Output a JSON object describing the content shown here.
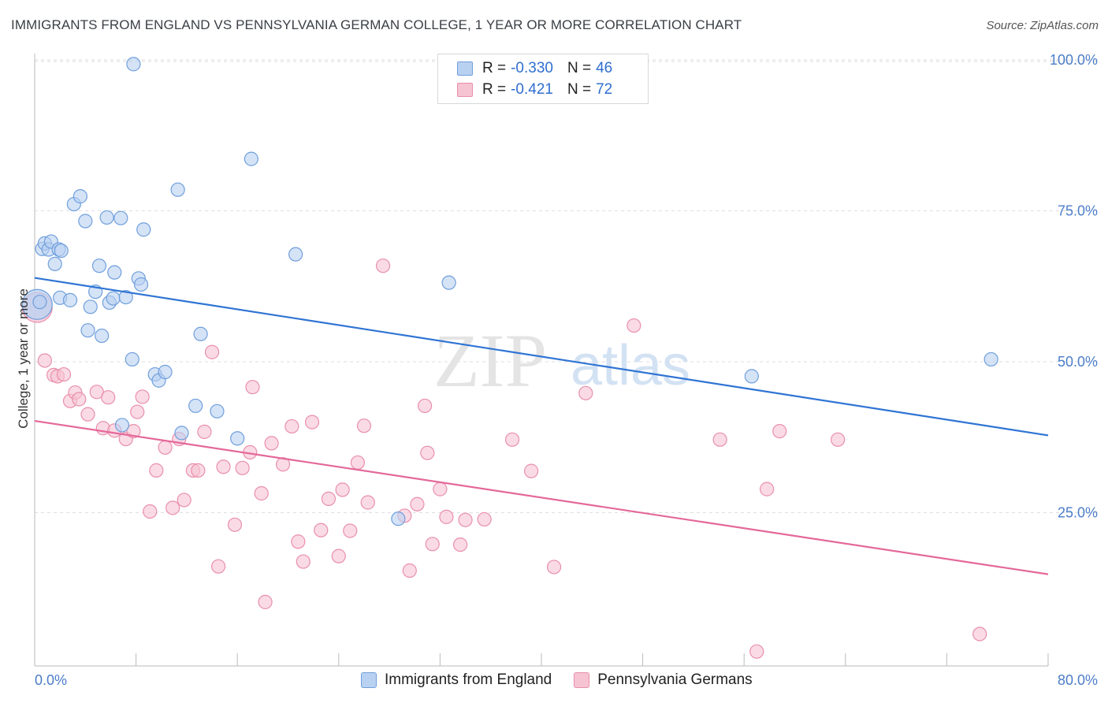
{
  "title": "IMMIGRANTS FROM ENGLAND VS PENNSYLVANIA GERMAN COLLEGE, 1 YEAR OR MORE CORRELATION CHART",
  "source": "Source: ZipAtlas.com",
  "watermark": {
    "zip": "ZIP",
    "atlas": "atlas"
  },
  "legend": {
    "rows": [
      {
        "r_label": "R =",
        "r_value": "-0.330",
        "n_label": "N =",
        "n_value": "46"
      },
      {
        "r_label": "R =",
        "r_value": "-0.421",
        "n_label": "N =",
        "n_value": "72"
      }
    ]
  },
  "bottom_legend": [
    "Immigrants from England",
    "Pennsylvania Germans"
  ],
  "colors": {
    "blue_fill": "#b9d1f1",
    "blue_stroke": "#6f9fdc",
    "blue_line": "#2f74d4",
    "pink_fill": "#f6c3d3",
    "pink_stroke": "#e98fab",
    "pink_line": "#e4689a",
    "grid": "#dedede",
    "tick_text": "#4b7dc8"
  },
  "chart_data": {
    "type": "scatter",
    "title": "IMMIGRANTS FROM ENGLAND VS PENNSYLVANIA GERMAN COLLEGE, 1 YEAR OR MORE CORRELATION CHART",
    "xlabel": "",
    "ylabel": "College, 1 year or more",
    "xlim": [
      0,
      80
    ],
    "ylim": [
      0,
      101
    ],
    "x_tick_labels": [
      "0.0%",
      "80.0%"
    ],
    "y_ticks": [
      {
        "value": 25,
        "label": "25.0%"
      },
      {
        "value": 50,
        "label": "50.0%"
      },
      {
        "value": 75,
        "label": "75.0%"
      },
      {
        "value": 100,
        "label": "100.0%"
      }
    ],
    "grid": true,
    "legend_position": "top-center",
    "series": [
      {
        "name": "Immigrants from England",
        "R": -0.33,
        "N": 46,
        "trend": {
          "x": [
            0,
            80
          ],
          "y": [
            63.9,
            37.8
          ]
        },
        "points": [
          {
            "x": 0.2,
            "y": 59.5,
            "big": true
          },
          {
            "x": 0.6,
            "y": 68.7
          },
          {
            "x": 0.8,
            "y": 69.6
          },
          {
            "x": 1.1,
            "y": 68.6
          },
          {
            "x": 1.3,
            "y": 69.9
          },
          {
            "x": 1.6,
            "y": 66.2
          },
          {
            "x": 1.9,
            "y": 68.6
          },
          {
            "x": 2.1,
            "y": 68.4
          },
          {
            "x": 2.0,
            "y": 60.6
          },
          {
            "x": 2.8,
            "y": 60.2
          },
          {
            "x": 3.1,
            "y": 76.1
          },
          {
            "x": 3.6,
            "y": 77.4
          },
          {
            "x": 4.0,
            "y": 73.3
          },
          {
            "x": 4.2,
            "y": 55.2
          },
          {
            "x": 4.4,
            "y": 59.1
          },
          {
            "x": 4.8,
            "y": 61.6
          },
          {
            "x": 5.1,
            "y": 65.9
          },
          {
            "x": 5.3,
            "y": 54.3
          },
          {
            "x": 5.7,
            "y": 73.9
          },
          {
            "x": 5.9,
            "y": 59.8
          },
          {
            "x": 6.2,
            "y": 60.5
          },
          {
            "x": 6.3,
            "y": 64.8
          },
          {
            "x": 6.8,
            "y": 73.8
          },
          {
            "x": 7.2,
            "y": 60.7
          },
          {
            "x": 7.7,
            "y": 50.4
          },
          {
            "x": 7.8,
            "y": 99.3
          },
          {
            "x": 8.2,
            "y": 63.8
          },
          {
            "x": 8.6,
            "y": 71.9
          },
          {
            "x": 8.4,
            "y": 62.8
          },
          {
            "x": 9.5,
            "y": 47.9
          },
          {
            "x": 9.8,
            "y": 46.9
          },
          {
            "x": 10.3,
            "y": 48.3
          },
          {
            "x": 11.3,
            "y": 78.5
          },
          {
            "x": 11.6,
            "y": 38.2
          },
          {
            "x": 12.7,
            "y": 42.7
          },
          {
            "x": 13.1,
            "y": 54.6
          },
          {
            "x": 14.4,
            "y": 41.8
          },
          {
            "x": 16.0,
            "y": 37.3
          },
          {
            "x": 17.1,
            "y": 83.6
          },
          {
            "x": 20.6,
            "y": 67.8
          },
          {
            "x": 6.9,
            "y": 39.5
          },
          {
            "x": 28.7,
            "y": 24.0
          },
          {
            "x": 32.7,
            "y": 63.1
          },
          {
            "x": 56.6,
            "y": 47.6
          },
          {
            "x": 75.5,
            "y": 50.4
          },
          {
            "x": 0.4,
            "y": 59.9
          }
        ]
      },
      {
        "name": "Pennsylvania Germans",
        "R": -0.421,
        "N": 72,
        "trend": {
          "x": [
            0,
            80
          ],
          "y": [
            40.2,
            14.8
          ]
        },
        "points": [
          {
            "x": 0.2,
            "y": 59.0,
            "big": true
          },
          {
            "x": 0.8,
            "y": 50.2
          },
          {
            "x": 1.5,
            "y": 47.8
          },
          {
            "x": 1.8,
            "y": 47.6
          },
          {
            "x": 2.3,
            "y": 47.9
          },
          {
            "x": 2.8,
            "y": 43.5
          },
          {
            "x": 3.2,
            "y": 44.9
          },
          {
            "x": 3.5,
            "y": 43.8
          },
          {
            "x": 4.2,
            "y": 41.3
          },
          {
            "x": 4.9,
            "y": 45.0
          },
          {
            "x": 5.4,
            "y": 39.0
          },
          {
            "x": 5.8,
            "y": 44.1
          },
          {
            "x": 6.3,
            "y": 38.6
          },
          {
            "x": 7.2,
            "y": 37.2
          },
          {
            "x": 7.8,
            "y": 38.5
          },
          {
            "x": 8.1,
            "y": 41.7
          },
          {
            "x": 8.5,
            "y": 44.2
          },
          {
            "x": 9.1,
            "y": 25.2
          },
          {
            "x": 9.6,
            "y": 32.0
          },
          {
            "x": 10.3,
            "y": 35.8
          },
          {
            "x": 10.9,
            "y": 25.8
          },
          {
            "x": 11.4,
            "y": 37.2
          },
          {
            "x": 11.8,
            "y": 27.1
          },
          {
            "x": 12.5,
            "y": 32.0
          },
          {
            "x": 12.9,
            "y": 32.0
          },
          {
            "x": 13.4,
            "y": 38.4
          },
          {
            "x": 14.0,
            "y": 51.6
          },
          {
            "x": 14.5,
            "y": 16.1
          },
          {
            "x": 14.9,
            "y": 32.6
          },
          {
            "x": 15.8,
            "y": 23.0
          },
          {
            "x": 16.4,
            "y": 32.4
          },
          {
            "x": 17.0,
            "y": 35.0
          },
          {
            "x": 17.2,
            "y": 45.8
          },
          {
            "x": 17.9,
            "y": 28.2
          },
          {
            "x": 18.2,
            "y": 10.2
          },
          {
            "x": 18.7,
            "y": 36.5
          },
          {
            "x": 19.6,
            "y": 33.0
          },
          {
            "x": 20.3,
            "y": 39.3
          },
          {
            "x": 20.8,
            "y": 20.2
          },
          {
            "x": 21.2,
            "y": 16.9
          },
          {
            "x": 21.9,
            "y": 40.0
          },
          {
            "x": 22.6,
            "y": 22.1
          },
          {
            "x": 23.2,
            "y": 27.3
          },
          {
            "x": 24.0,
            "y": 17.8
          },
          {
            "x": 24.3,
            "y": 28.8
          },
          {
            "x": 24.9,
            "y": 22.0
          },
          {
            "x": 25.5,
            "y": 33.3
          },
          {
            "x": 26.0,
            "y": 39.4
          },
          {
            "x": 26.3,
            "y": 26.7
          },
          {
            "x": 27.5,
            "y": 65.9
          },
          {
            "x": 29.2,
            "y": 24.5
          },
          {
            "x": 29.6,
            "y": 15.4
          },
          {
            "x": 30.2,
            "y": 26.4
          },
          {
            "x": 30.8,
            "y": 42.7
          },
          {
            "x": 31.0,
            "y": 34.9
          },
          {
            "x": 31.4,
            "y": 19.8
          },
          {
            "x": 32.0,
            "y": 28.9
          },
          {
            "x": 32.5,
            "y": 24.3
          },
          {
            "x": 33.6,
            "y": 19.7
          },
          {
            "x": 34.0,
            "y": 23.8
          },
          {
            "x": 35.5,
            "y": 23.9
          },
          {
            "x": 37.7,
            "y": 37.1
          },
          {
            "x": 39.2,
            "y": 31.9
          },
          {
            "x": 41.0,
            "y": 16.0
          },
          {
            "x": 43.5,
            "y": 44.8
          },
          {
            "x": 47.3,
            "y": 56.0
          },
          {
            "x": 54.1,
            "y": 37.1
          },
          {
            "x": 57.0,
            "y": 2.0
          },
          {
            "x": 57.8,
            "y": 28.9
          },
          {
            "x": 58.8,
            "y": 38.5
          },
          {
            "x": 63.4,
            "y": 37.1
          },
          {
            "x": 74.6,
            "y": 4.9
          }
        ]
      }
    ]
  }
}
